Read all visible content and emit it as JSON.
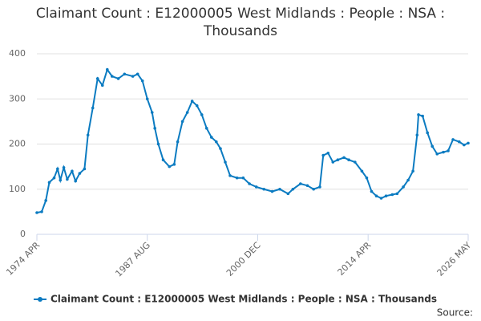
{
  "chart_data": {
    "type": "line",
    "title": "Claimant Count : E12000005 West Midlands : People : NSA : Thousands",
    "source_label": "Source:",
    "x": [
      "1974 APR",
      "1974 NOV",
      "1975 MAY",
      "1975 OCT",
      "1976 MAY",
      "1976 OCT",
      "1977 FEB",
      "1977 JUL",
      "1977 DEC",
      "1978 JUL",
      "1978 DEC",
      "1979 JUN",
      "1980 JAN",
      "1980 JUN",
      "1981 JAN",
      "1981 AUG",
      "1982 MAR",
      "1982 OCT",
      "1983 MAY",
      "1984 FEB",
      "1984 NOV",
      "1985 NOV",
      "1986 JUN",
      "1987 JAN",
      "1987 AUG",
      "1988 MAR",
      "1988 JUL",
      "1988 DEC",
      "1989 JUL",
      "1990 APR",
      "1990 NOV",
      "1991 APR",
      "1991 NOV",
      "1992 JUN",
      "1993 JAN",
      "1993 AUG",
      "1994 MAR",
      "1994 OCT",
      "1995 MAY",
      "1995 DEC",
      "1996 JUN",
      "1997 JAN",
      "1997 AUG",
      "1998 JUN",
      "1999 MAR",
      "1999 DEC",
      "2000 OCT",
      "2001 SEP",
      "2002 SEP",
      "2003 AUG",
      "2004 AUG",
      "2005 MAR",
      "2006 FEB",
      "2006 DEC",
      "2007 SEP",
      "2008 JUN",
      "2008 NOV",
      "2009 JUN",
      "2010 JAN",
      "2010 AUG",
      "2011 MAY",
      "2011 DEC",
      "2012 SEP",
      "2013 JUL",
      "2014 FEB",
      "2014 SEP",
      "2015 APR",
      "2015 NOV",
      "2016 JUN",
      "2017 MAR",
      "2017 OCT",
      "2018 JUL",
      "2019 FEB",
      "2019 SEP",
      "2020 MAR",
      "2020 MAY",
      "2020 NOV",
      "2021 JUN",
      "2022 JAN",
      "2022 AUG",
      "2023 MAY",
      "2023 DEC",
      "2024 JUL",
      "2025 APR",
      "2025 NOV",
      "2026 MAY"
    ],
    "series": [
      {
        "name": "Claimant Count : E12000005 West Midlands : People : NSA : Thousands",
        "color": "#0b7bc1",
        "values": [
          48,
          50,
          75,
          115,
          125,
          145,
          120,
          148,
          122,
          140,
          118,
          135,
          145,
          220,
          280,
          345,
          330,
          365,
          350,
          345,
          355,
          350,
          355,
          340,
          300,
          270,
          235,
          200,
          165,
          150,
          155,
          205,
          250,
          270,
          295,
          285,
          265,
          235,
          215,
          205,
          190,
          160,
          130,
          125,
          125,
          112,
          105,
          100,
          95,
          100,
          90,
          100,
          112,
          108,
          100,
          105,
          175,
          180,
          160,
          165,
          170,
          165,
          160,
          140,
          125,
          95,
          85,
          80,
          85,
          88,
          90,
          105,
          120,
          140,
          220,
          265,
          262,
          225,
          195,
          178,
          182,
          185,
          210,
          205,
          198,
          202
        ]
      }
    ],
    "xlim": [
      "1974 APR",
      "2026 MAY"
    ],
    "xticks": [
      "1974 APR",
      "1987 AUG",
      "2000 DEC",
      "2014 APR",
      "2026 MAY"
    ],
    "ylim": [
      0,
      400
    ],
    "yticks": [
      0,
      100,
      200,
      300,
      400
    ],
    "grid": true,
    "legend": "bottom"
  }
}
